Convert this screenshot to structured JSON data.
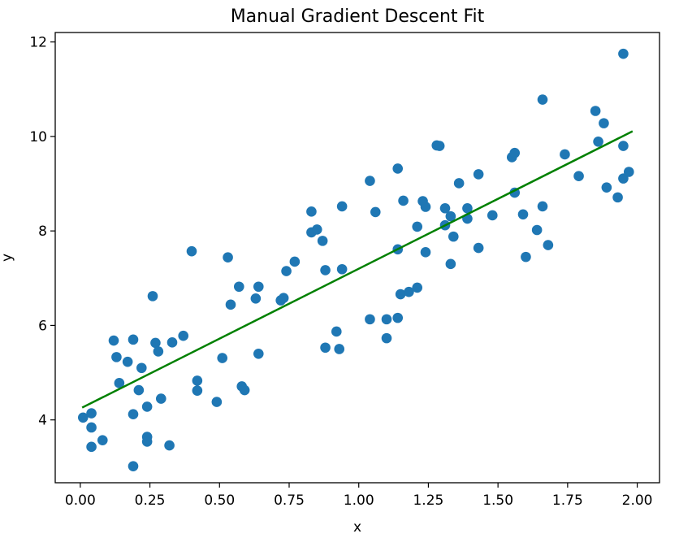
{
  "chart_data": {
    "type": "scatter",
    "title": "Manual Gradient Descent Fit",
    "xlabel": "x",
    "ylabel": "y",
    "xlim": [
      -0.09,
      2.08
    ],
    "ylim": [
      2.67,
      12.2
    ],
    "x_ticks": [
      0.0,
      0.25,
      0.5,
      0.75,
      1.0,
      1.25,
      1.5,
      1.75,
      2.0
    ],
    "x_tick_labels": [
      "0.00",
      "0.25",
      "0.50",
      "0.75",
      "1.00",
      "1.25",
      "1.50",
      "1.75",
      "2.00"
    ],
    "y_ticks": [
      4,
      6,
      8,
      10,
      12
    ],
    "y_tick_labels": [
      "4",
      "6",
      "8",
      "10",
      "12"
    ],
    "grid": false,
    "colors": {
      "points": "#1f77b4",
      "line": "#008000"
    },
    "series": [
      {
        "kind": "scatter",
        "points": [
          [
            0.01,
            4.05
          ],
          [
            0.04,
            4.14
          ],
          [
            0.04,
            3.84
          ],
          [
            0.04,
            3.43
          ],
          [
            0.08,
            3.57
          ],
          [
            0.12,
            5.68
          ],
          [
            0.13,
            5.33
          ],
          [
            0.14,
            4.78
          ],
          [
            0.17,
            5.23
          ],
          [
            0.19,
            5.7
          ],
          [
            0.19,
            4.12
          ],
          [
            0.19,
            3.02
          ],
          [
            0.21,
            4.63
          ],
          [
            0.22,
            5.1
          ],
          [
            0.24,
            4.28
          ],
          [
            0.24,
            3.64
          ],
          [
            0.24,
            3.54
          ],
          [
            0.26,
            6.62
          ],
          [
            0.27,
            5.63
          ],
          [
            0.28,
            5.45
          ],
          [
            0.29,
            4.45
          ],
          [
            0.32,
            3.46
          ],
          [
            0.33,
            5.64
          ],
          [
            0.37,
            5.78
          ],
          [
            0.4,
            7.57
          ],
          [
            0.42,
            4.83
          ],
          [
            0.42,
            4.62
          ],
          [
            0.49,
            4.38
          ],
          [
            0.51,
            5.31
          ],
          [
            0.53,
            7.44
          ],
          [
            0.54,
            6.44
          ],
          [
            0.57,
            6.82
          ],
          [
            0.58,
            4.71
          ],
          [
            0.59,
            4.63
          ],
          [
            0.63,
            6.57
          ],
          [
            0.64,
            6.82
          ],
          [
            0.64,
            5.4
          ],
          [
            0.72,
            6.53
          ],
          [
            0.73,
            6.58
          ],
          [
            0.74,
            7.15
          ],
          [
            0.77,
            7.35
          ],
          [
            0.83,
            8.41
          ],
          [
            0.83,
            7.97
          ],
          [
            0.85,
            8.03
          ],
          [
            0.87,
            7.79
          ],
          [
            0.88,
            7.17
          ],
          [
            0.88,
            5.53
          ],
          [
            0.92,
            5.87
          ],
          [
            0.93,
            5.5
          ],
          [
            0.94,
            7.19
          ],
          [
            0.94,
            8.52
          ],
          [
            1.04,
            9.06
          ],
          [
            1.04,
            6.13
          ],
          [
            1.06,
            8.4
          ],
          [
            1.1,
            5.73
          ],
          [
            1.1,
            6.13
          ],
          [
            1.14,
            9.32
          ],
          [
            1.14,
            7.61
          ],
          [
            1.14,
            6.16
          ],
          [
            1.15,
            6.66
          ],
          [
            1.16,
            8.64
          ],
          [
            1.18,
            6.71
          ],
          [
            1.21,
            8.09
          ],
          [
            1.21,
            6.8
          ],
          [
            1.23,
            8.63
          ],
          [
            1.24,
            8.51
          ],
          [
            1.24,
            7.55
          ],
          [
            1.28,
            9.81
          ],
          [
            1.29,
            9.8
          ],
          [
            1.31,
            8.48
          ],
          [
            1.31,
            8.12
          ],
          [
            1.33,
            8.31
          ],
          [
            1.34,
            7.88
          ],
          [
            1.33,
            7.3
          ],
          [
            1.36,
            9.01
          ],
          [
            1.39,
            8.48
          ],
          [
            1.39,
            8.26
          ],
          [
            1.43,
            9.2
          ],
          [
            1.43,
            7.64
          ],
          [
            1.48,
            8.33
          ],
          [
            1.55,
            9.56
          ],
          [
            1.56,
            9.65
          ],
          [
            1.56,
            8.81
          ],
          [
            1.59,
            8.35
          ],
          [
            1.6,
            7.45
          ],
          [
            1.64,
            8.02
          ],
          [
            1.66,
            10.78
          ],
          [
            1.66,
            8.52
          ],
          [
            1.68,
            7.7
          ],
          [
            1.74,
            9.62
          ],
          [
            1.79,
            9.16
          ],
          [
            1.85,
            10.54
          ],
          [
            1.86,
            9.89
          ],
          [
            1.88,
            10.28
          ],
          [
            1.89,
            8.92
          ],
          [
            1.93,
            8.71
          ],
          [
            1.95,
            11.75
          ],
          [
            1.95,
            9.8
          ],
          [
            1.95,
            9.11
          ],
          [
            1.97,
            9.25
          ]
        ]
      },
      {
        "kind": "line",
        "points": [
          [
            0.01,
            4.27
          ],
          [
            1.98,
            10.1
          ]
        ]
      }
    ]
  }
}
